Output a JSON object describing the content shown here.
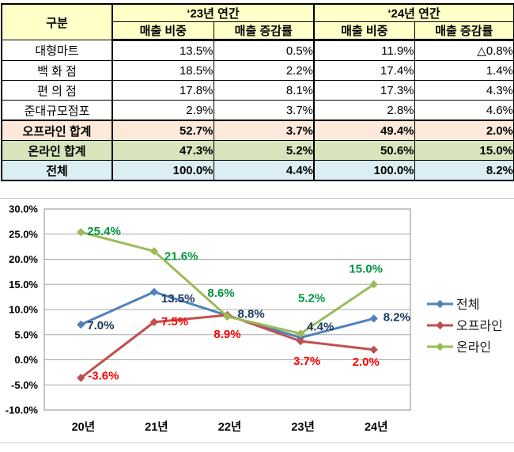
{
  "table": {
    "corner_label": "구분",
    "groups": [
      {
        "label": "‘23년 연간"
      },
      {
        "label": "‘24년 연간"
      }
    ],
    "subheaders": [
      "매출 비중",
      "매출 증감률",
      "매출 비중",
      "매출 증감률"
    ],
    "rows": [
      {
        "label": "대형마트",
        "values": [
          "13.5%",
          "0.5%",
          "11.9%",
          "△0.8%"
        ],
        "kind": "plain"
      },
      {
        "label": "백 화 점",
        "values": [
          "18.5%",
          "2.2%",
          "17.4%",
          "1.4%"
        ],
        "kind": "plain"
      },
      {
        "label": "편 의 점",
        "values": [
          "17.8%",
          "8.1%",
          "17.3%",
          "4.3%"
        ],
        "kind": "plain"
      },
      {
        "label": "준대규모점포",
        "values": [
          "2.9%",
          "3.7%",
          "2.8%",
          "4.6%"
        ],
        "kind": "plain"
      },
      {
        "label": "오프라인 합계",
        "values": [
          "52.7%",
          "3.7%",
          "49.4%",
          "2.0%"
        ],
        "kind": "offline-total"
      },
      {
        "label": "온라인 합계",
        "values": [
          "47.3%",
          "5.2%",
          "50.6%",
          "15.0%"
        ],
        "kind": "online-total"
      },
      {
        "label": "전체",
        "values": [
          "100.0%",
          "4.4%",
          "100.0%",
          "8.2%"
        ],
        "kind": "grand-total"
      }
    ],
    "colors": {
      "header_bg": "#FFFFC8",
      "offline_row_bg": "#FCE9D9",
      "online_row_bg": "#D7E4BC",
      "total_row_bg": "#DAEEF3"
    }
  },
  "chart_data": {
    "type": "line",
    "title": "",
    "xlabel": "",
    "ylabel": "",
    "categories": [
      "20년",
      "21년",
      "22년",
      "23년",
      "24년"
    ],
    "series": [
      {
        "name": "전체",
        "values": [
          7.0,
          13.5,
          8.8,
          4.4,
          8.2
        ],
        "color": "#4F81BD",
        "label_color": "#17375E"
      },
      {
        "name": "오프라인",
        "values": [
          -3.6,
          7.5,
          8.9,
          3.7,
          2.0
        ],
        "color": "#C0504D",
        "label_color": "#FF0000"
      },
      {
        "name": "온라인",
        "values": [
          25.4,
          21.6,
          8.6,
          5.2,
          15.0
        ],
        "color": "#9BBB59",
        "label_color": "#009640"
      }
    ],
    "ylim": [
      -10,
      30
    ],
    "ytick_step": 5,
    "ytick_labels": [
      "30.0%",
      "25.0%",
      "20.0%",
      "15.0%",
      "10.0%",
      "5.0%",
      "0.0%",
      "-5.0%",
      "-10.0%"
    ],
    "grid": true,
    "data_labels": true,
    "legend_position": "right",
    "grid_color": "#A8A8A8",
    "plot_border_color": "#8C8C8C"
  }
}
